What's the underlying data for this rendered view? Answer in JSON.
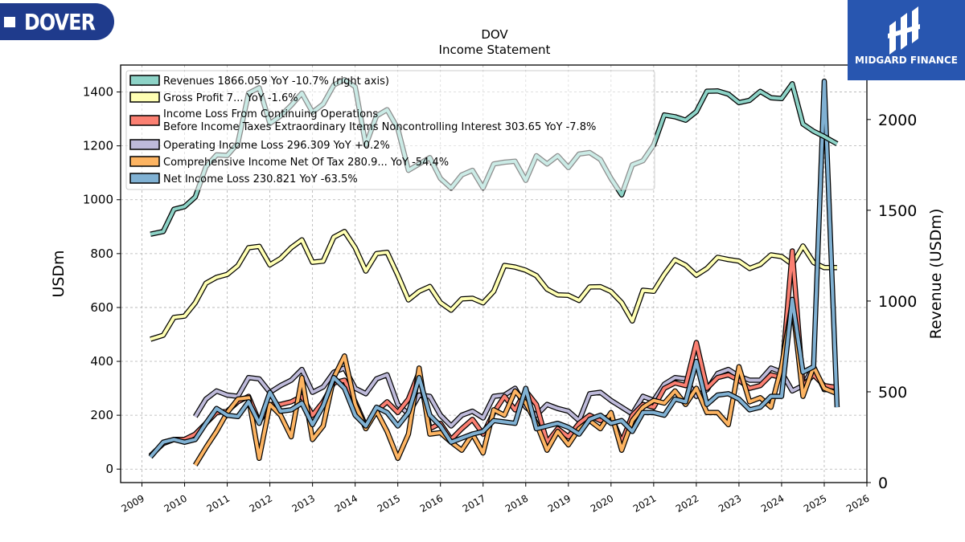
{
  "logos": {
    "left_text": "DOVER",
    "right_text": "MIDGARD FINANCE"
  },
  "chart_data": {
    "type": "line",
    "title": "DOV",
    "subtitle": "Income Statement",
    "ylabel": "USDm",
    "y2label": "Revenue (USDm)",
    "ylim": [
      -50,
      1500
    ],
    "y2lim": [
      0,
      2300
    ],
    "xlim": [
      2008.5,
      2026
    ],
    "yticks": [
      0,
      200,
      400,
      600,
      800,
      1000,
      1200,
      1400
    ],
    "y2ticks": [
      0,
      500,
      1000,
      1500,
      2000
    ],
    "xticks": [
      "2009",
      "2010",
      "2011",
      "2012",
      "2013",
      "2014",
      "2015",
      "2016",
      "2017",
      "2018",
      "2019",
      "2020",
      "2021",
      "2022",
      "2023",
      "2024",
      "2025",
      "2026"
    ],
    "grid": true,
    "legend_position": "top-left",
    "series": [
      {
        "name": "Revenues",
        "legend": "Revenues  1866.059 YoY -10.7% (right axis)",
        "color": "#8dd3c7",
        "axis": "right",
        "x": [
          2009.2,
          2009.5,
          2009.75,
          2010.0,
          2010.25,
          2010.5,
          2010.75,
          2011.0,
          2011.25,
          2011.5,
          2011.75,
          2012.0,
          2012.25,
          2012.5,
          2012.75,
          2013.0,
          2013.25,
          2013.5,
          2013.75,
          2014.0,
          2014.25,
          2014.5,
          2014.75,
          2015.0,
          2015.25,
          2015.5,
          2015.75,
          2016.0,
          2016.25,
          2016.5,
          2016.75,
          2017.0,
          2017.25,
          2017.5,
          2017.75,
          2018.0,
          2018.25,
          2018.5,
          2018.75,
          2019.0,
          2019.25,
          2019.5,
          2019.75,
          2020.0,
          2020.25,
          2020.5,
          2020.75,
          2021.0,
          2021.25,
          2021.5,
          2021.75,
          2022.0,
          2022.25,
          2022.5,
          2022.75,
          2023.0,
          2023.25,
          2023.5,
          2023.75,
          2024.0,
          2024.25,
          2024.5,
          2024.75,
          2025.0,
          2025.3
        ],
        "y": [
          1368,
          1383,
          1505,
          1520,
          1573,
          1740,
          1805,
          1802,
          1870,
          2145,
          2175,
          1978,
          2020,
          2078,
          2145,
          2040,
          2085,
          2190,
          2220,
          2180,
          1860,
          2020,
          2054,
          1950,
          1720,
          1755,
          1790,
          1675,
          1622,
          1695,
          1720,
          1623,
          1755,
          1765,
          1770,
          1665,
          1800,
          1755,
          1800,
          1735,
          1810,
          1818,
          1780,
          1675,
          1585,
          1750,
          1773,
          1860,
          2025,
          2015,
          1996,
          2043,
          2156,
          2157,
          2140,
          2093,
          2106,
          2155,
          2120,
          2115,
          2197,
          1975,
          1935,
          1906,
          1866
        ]
      },
      {
        "name": "Gross Profit",
        "legend": "Gross Profit  7... YoY -1.6%",
        "color": "#ffffb3",
        "axis": "left",
        "x": [
          2009.2,
          2009.5,
          2009.75,
          2010.0,
          2010.25,
          2010.5,
          2010.75,
          2011.0,
          2011.25,
          2011.5,
          2011.75,
          2012.0,
          2012.25,
          2012.5,
          2012.75,
          2013.0,
          2013.25,
          2013.5,
          2013.75,
          2014.0,
          2014.25,
          2014.5,
          2014.75,
          2015.0,
          2015.25,
          2015.5,
          2015.75,
          2016.0,
          2016.25,
          2016.5,
          2016.75,
          2017.0,
          2017.25,
          2017.5,
          2017.75,
          2018.0,
          2018.25,
          2018.5,
          2018.75,
          2019.0,
          2019.25,
          2019.5,
          2019.75,
          2020.0,
          2020.25,
          2020.5,
          2020.75,
          2021.0,
          2021.25,
          2021.5,
          2021.75,
          2022.0,
          2022.25,
          2022.5,
          2022.75,
          2023.0,
          2023.25,
          2023.5,
          2023.75,
          2024.0,
          2024.25,
          2024.5,
          2024.75,
          2025.0,
          2025.3
        ],
        "y": [
          482,
          497,
          563,
          568,
          617,
          690,
          712,
          723,
          755,
          822,
          827,
          758,
          782,
          822,
          851,
          768,
          772,
          861,
          882,
          822,
          735,
          800,
          805,
          720,
          628,
          660,
          678,
          618,
          590,
          632,
          634,
          617,
          660,
          756,
          750,
          738,
          718,
          668,
          647,
          645,
          626,
          676,
          677,
          659,
          618,
          550,
          664,
          660,
          723,
          777,
          757,
          720,
          745,
          786,
          778,
          772,
          745,
          760,
          795,
          789,
          760,
          828,
          767,
          748,
          748
        ]
      },
      {
        "name": "Income Loss From Continuing Operations Before Income Taxes Extraordinary Items Noncontrolling Interest",
        "legend": "Income Loss From Continuing Operations",
        "legend2": "Before Income Taxes Extraordinary Items Noncontrolling Interest  303.65 YoY -7.8%",
        "color": "#fb8072",
        "axis": "left",
        "x": [
          2009.2,
          2009.5,
          2009.75,
          2010.0,
          2010.25,
          2010.5,
          2010.75,
          2011.0,
          2011.25,
          2011.5,
          2011.75,
          2012.0,
          2012.25,
          2012.5,
          2012.75,
          2013.0,
          2013.25,
          2013.5,
          2013.75,
          2014.0,
          2014.25,
          2014.5,
          2014.75,
          2015.0,
          2015.25,
          2015.5,
          2015.75,
          2016.0,
          2016.25,
          2016.5,
          2016.75,
          2017.0,
          2017.25,
          2017.5,
          2017.75,
          2018.0,
          2018.25,
          2018.5,
          2018.75,
          2019.0,
          2019.25,
          2019.5,
          2019.75,
          2020.0,
          2020.25,
          2020.5,
          2020.75,
          2021.0,
          2021.25,
          2021.5,
          2021.75,
          2022.0,
          2022.25,
          2022.5,
          2022.75,
          2023.0,
          2023.25,
          2023.5,
          2023.75,
          2024.0,
          2024.25,
          2024.5,
          2024.75,
          2025.0,
          2025.3
        ],
        "y": [
          50,
          95,
          110,
          110,
          130,
          170,
          210,
          215,
          250,
          270,
          175,
          240,
          240,
          250,
          270,
          200,
          250,
          320,
          330,
          250,
          160,
          215,
          250,
          210,
          260,
          360,
          150,
          170,
          110,
          150,
          185,
          130,
          210,
          270,
          220,
          290,
          240,
          100,
          150,
          120,
          170,
          200,
          180,
          200,
          100,
          200,
          240,
          230,
          300,
          320,
          310,
          470,
          300,
          340,
          350,
          330,
          300,
          310,
          350,
          340,
          810,
          310,
          350,
          310,
          303
        ]
      },
      {
        "name": "Operating Income Loss",
        "legend": "Operating Income Loss  296.309 YoY +0.2%",
        "color": "#bebada",
        "axis": "left",
        "x": [
          2010.25,
          2010.5,
          2010.75,
          2011.0,
          2011.25,
          2011.5,
          2011.75,
          2012.0,
          2012.25,
          2012.5,
          2012.75,
          2013.0,
          2013.25,
          2013.5,
          2013.75,
          2014.0,
          2014.25,
          2014.5,
          2014.75,
          2015.0,
          2015.25,
          2015.5,
          2015.75,
          2016.0,
          2016.25,
          2016.5,
          2016.75,
          2017.0,
          2017.25,
          2017.5,
          2017.75,
          2018.0,
          2018.25,
          2018.5,
          2018.75,
          2019.0,
          2019.25,
          2019.5,
          2019.75,
          2020.0,
          2020.25,
          2020.5,
          2020.75,
          2021.0,
          2021.25,
          2021.5,
          2021.75,
          2022.0,
          2022.25,
          2022.5,
          2022.75,
          2023.0,
          2023.25,
          2023.5,
          2023.75,
          2024.0,
          2024.25,
          2024.5,
          2024.75,
          2025.0,
          2025.3
        ],
        "y": [
          195,
          260,
          290,
          275,
          270,
          340,
          335,
          285,
          310,
          330,
          370,
          285,
          305,
          360,
          375,
          300,
          280,
          335,
          350,
          240,
          205,
          275,
          270,
          200,
          160,
          200,
          215,
          190,
          270,
          275,
          300,
          230,
          200,
          240,
          225,
          215,
          180,
          280,
          285,
          255,
          230,
          205,
          270,
          255,
          315,
          340,
          335,
          270,
          295,
          355,
          370,
          345,
          330,
          330,
          375,
          360,
          290,
          310,
          380,
          295,
          296
        ]
      },
      {
        "name": "Comprehensive Income Net Of Tax",
        "legend": "Comprehensive Income Net Of Tax  280.9... YoY -54.4%",
        "color": "#fdb462",
        "axis": "left",
        "x": [
          2010.25,
          2010.5,
          2010.75,
          2011.0,
          2011.25,
          2011.5,
          2011.75,
          2012.0,
          2012.25,
          2012.5,
          2012.75,
          2013.0,
          2013.25,
          2013.5,
          2013.75,
          2014.0,
          2014.25,
          2014.5,
          2014.75,
          2015.0,
          2015.25,
          2015.5,
          2015.75,
          2016.0,
          2016.25,
          2016.5,
          2016.75,
          2017.0,
          2017.25,
          2017.5,
          2017.75,
          2018.0,
          2018.25,
          2018.5,
          2018.75,
          2019.0,
          2019.25,
          2019.5,
          2019.75,
          2020.0,
          2020.25,
          2020.5,
          2020.75,
          2021.0,
          2021.25,
          2021.5,
          2021.75,
          2022.0,
          2022.25,
          2022.5,
          2022.75,
          2023.0,
          2023.25,
          2023.5,
          2023.75,
          2024.0,
          2024.25,
          2024.5,
          2024.75,
          2025.0,
          2025.3
        ],
        "y": [
          15,
          80,
          140,
          210,
          260,
          265,
          40,
          240,
          200,
          120,
          340,
          110,
          160,
          340,
          420,
          240,
          150,
          215,
          140,
          40,
          130,
          375,
          130,
          135,
          100,
          70,
          130,
          60,
          220,
          200,
          290,
          245,
          170,
          70,
          140,
          90,
          150,
          180,
          150,
          210,
          70,
          180,
          230,
          255,
          245,
          290,
          240,
          300,
          210,
          210,
          165,
          380,
          250,
          265,
          230,
          380,
          620,
          270,
          380,
          300,
          280
        ]
      },
      {
        "name": "Net Income Loss",
        "legend": "Net Income Loss  230.821 YoY -63.5%",
        "color": "#80b1d3",
        "axis": "left",
        "x": [
          2009.2,
          2009.5,
          2009.75,
          2010.0,
          2010.25,
          2010.5,
          2010.75,
          2011.0,
          2011.25,
          2011.5,
          2011.75,
          2012.0,
          2012.25,
          2012.5,
          2012.75,
          2013.0,
          2013.25,
          2013.5,
          2013.75,
          2014.0,
          2014.25,
          2014.5,
          2014.75,
          2015.0,
          2015.25,
          2015.5,
          2015.75,
          2016.0,
          2016.25,
          2016.5,
          2016.75,
          2017.0,
          2017.25,
          2017.5,
          2017.75,
          2018.0,
          2018.25,
          2018.5,
          2018.75,
          2019.0,
          2019.25,
          2019.5,
          2019.75,
          2020.0,
          2020.25,
          2020.5,
          2020.75,
          2021.0,
          2021.25,
          2021.5,
          2021.75,
          2022.0,
          2022.25,
          2022.5,
          2022.75,
          2023.0,
          2023.25,
          2023.5,
          2023.75,
          2024.0,
          2024.25,
          2024.5,
          2024.75,
          2025.0,
          2025.3
        ],
        "y": [
          45,
          100,
          110,
          100,
          110,
          170,
          225,
          200,
          195,
          250,
          170,
          285,
          215,
          220,
          245,
          165,
          235,
          340,
          300,
          200,
          160,
          230,
          210,
          160,
          210,
          340,
          200,
          160,
          100,
          115,
          130,
          140,
          180,
          175,
          170,
          300,
          150,
          160,
          170,
          155,
          130,
          185,
          200,
          170,
          180,
          140,
          210,
          210,
          200,
          260,
          250,
          400,
          240,
          275,
          280,
          260,
          220,
          230,
          270,
          270,
          630,
          360,
          380,
          1440,
          230
        ]
      }
    ]
  }
}
